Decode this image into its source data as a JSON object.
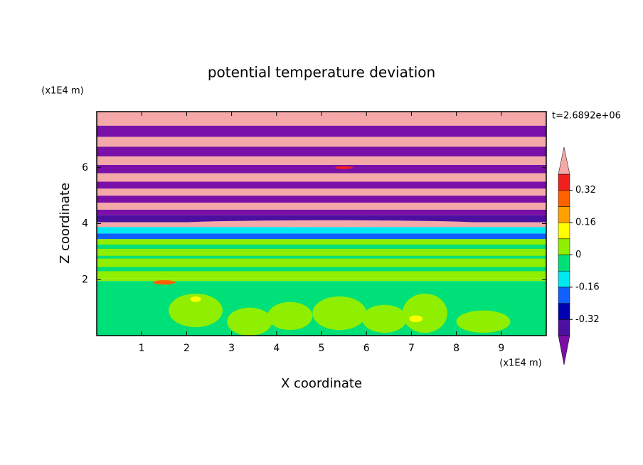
{
  "chart_data": {
    "type": "contour",
    "title": "potential temperature deviation",
    "x_label": "X coordinate",
    "y_label": "Z coordinate",
    "x_unit": "(x1E4 m)",
    "y_unit": "(x1E4 m)",
    "annotation": "t=2.6892e+06",
    "xlim": [
      0,
      10
    ],
    "ylim": [
      0,
      8
    ],
    "xticks": [
      1,
      2,
      3,
      4,
      5,
      6,
      7,
      8,
      9
    ],
    "yticks": [
      2,
      4,
      6
    ],
    "colorbar": {
      "levels": [
        -0.4,
        -0.32,
        -0.24,
        -0.16,
        -0.08,
        0,
        0.08,
        0.16,
        0.24,
        0.32,
        0.4
      ],
      "colors": [
        "#7a10a8",
        "#4c10a0",
        "#0000b0",
        "#1060ff",
        "#00e8f0",
        "#00e078",
        "#90ee00",
        "#ffff00",
        "#ffa000",
        "#ff6000",
        "#f02020",
        "#f4a8a8"
      ],
      "ticks": [
        0.32,
        0.16,
        0,
        -0.16,
        -0.32
      ]
    },
    "strata": [
      {
        "z": [
          0,
          1.95
        ],
        "value": -0.04
      },
      {
        "z": [
          1.95,
          2.05
        ],
        "value": 0.04
      },
      {
        "z": [
          2.05,
          3.45
        ],
        "value": 0.04
      },
      {
        "z": [
          2.3,
          2.45
        ],
        "value": -0.04
      },
      {
        "z": [
          2.75,
          2.85
        ],
        "value": -0.04
      },
      {
        "z": [
          3.1,
          3.25
        ],
        "value": -0.04
      },
      {
        "z": [
          3.45,
          3.65
        ],
        "value": -0.2
      },
      {
        "z": [
          3.65,
          3.88
        ],
        "value": -0.12
      },
      {
        "z": [
          3.88,
          4.05
        ],
        "value": 0.45
      },
      {
        "z": [
          4.05,
          4.3
        ],
        "value": -0.36
      },
      {
        "z": [
          4.3,
          4.5
        ],
        "value": -0.45
      },
      {
        "z": [
          4.5,
          4.75
        ],
        "value": 0.45
      },
      {
        "z": [
          4.75,
          5.0
        ],
        "value": -0.45
      },
      {
        "z": [
          5.0,
          5.25
        ],
        "value": 0.45
      },
      {
        "z": [
          5.25,
          5.5
        ],
        "value": -0.45
      },
      {
        "z": [
          5.5,
          5.8
        ],
        "value": 0.45
      },
      {
        "z": [
          5.8,
          6.1
        ],
        "value": -0.45
      },
      {
        "z": [
          6.1,
          6.4
        ],
        "value": 0.45
      },
      {
        "z": [
          6.4,
          6.75
        ],
        "value": -0.45
      },
      {
        "z": [
          6.75,
          7.1
        ],
        "value": 0.45
      },
      {
        "z": [
          7.1,
          7.5
        ],
        "value": -0.45
      },
      {
        "z": [
          7.5,
          8
        ],
        "value": 0.45
      }
    ],
    "blobs": [
      {
        "x": 2.2,
        "z": 0.9,
        "rx": 0.6,
        "rz": 0.6,
        "value": 0.04
      },
      {
        "x": 3.4,
        "z": 0.5,
        "rx": 0.5,
        "rz": 0.5,
        "value": 0.04
      },
      {
        "x": 4.3,
        "z": 0.7,
        "rx": 0.5,
        "rz": 0.5,
        "value": 0.04
      },
      {
        "x": 5.4,
        "z": 0.8,
        "rx": 0.6,
        "rz": 0.6,
        "value": 0.04
      },
      {
        "x": 6.4,
        "z": 0.6,
        "rx": 0.5,
        "rz": 0.5,
        "value": 0.04
      },
      {
        "x": 7.3,
        "z": 0.8,
        "rx": 0.5,
        "rz": 0.7,
        "value": 0.04
      },
      {
        "x": 8.6,
        "z": 0.5,
        "rx": 0.6,
        "rz": 0.4,
        "value": 0.04
      },
      {
        "x": 7.1,
        "z": 0.6,
        "rx": 0.15,
        "rz": 0.12,
        "value": 0.12
      },
      {
        "x": 1.5,
        "z": 1.9,
        "rx": 0.25,
        "rz": 0.08,
        "value": 0.28
      },
      {
        "x": 2.2,
        "z": 1.3,
        "rx": 0.12,
        "rz": 0.1,
        "value": 0.12
      },
      {
        "x": 5.2,
        "z": 4.0,
        "rx": 3.5,
        "rz": 0.12,
        "value": 0.45
      },
      {
        "x": 5.5,
        "z": 6.0,
        "rx": 0.2,
        "rz": 0.05,
        "value": 0.36
      }
    ]
  }
}
